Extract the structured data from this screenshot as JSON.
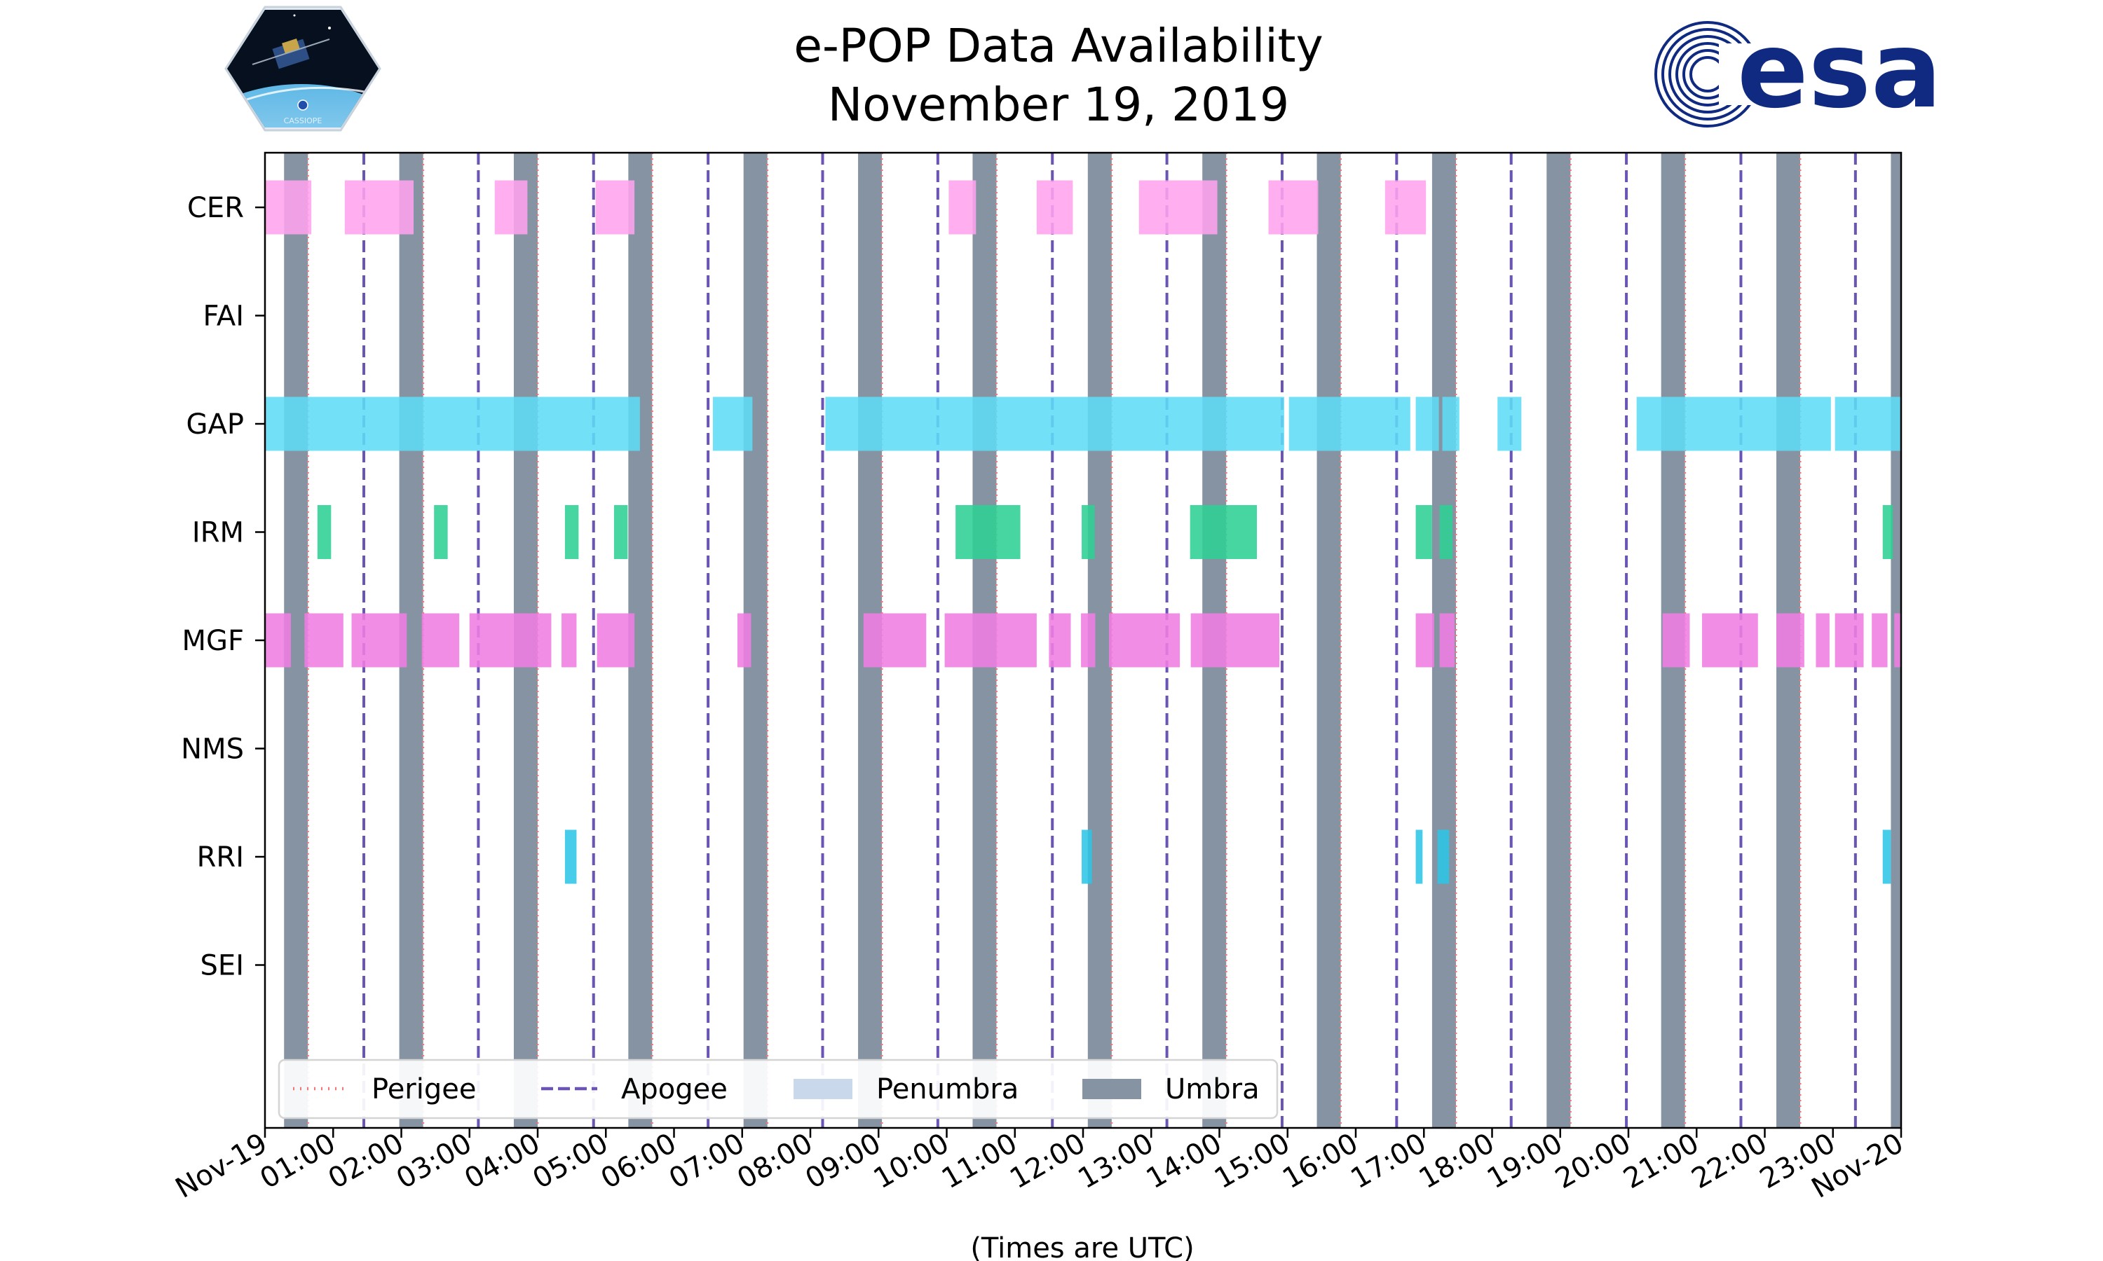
{
  "logos": {
    "cassiope_text": "CASSIOPE",
    "esa_text": "esa"
  },
  "colors": {
    "CER": "#ffa3ee",
    "GAP": "#5fdcf6",
    "IRM": "#2ed095",
    "MGF": "#f07de2",
    "RRI": "#2ec5e6",
    "umbra": "#8593a3",
    "penumbra": "#c9d8ea",
    "perigee": "#f07878",
    "apogee": "#6a55b5",
    "esa_blue": "#0f2a80"
  },
  "chart_data": {
    "type": "timeline",
    "title": [
      "e-POP Data Availability",
      "November 19, 2019"
    ],
    "xlabel": "(Times are UTC)",
    "x_unit": "hours since 2019-11-19 00:00 UTC",
    "xlim": [
      0,
      24
    ],
    "x_ticks": [
      0,
      1,
      2,
      3,
      4,
      5,
      6,
      7,
      8,
      9,
      10,
      11,
      12,
      13,
      14,
      15,
      16,
      17,
      18,
      19,
      20,
      21,
      22,
      23,
      24
    ],
    "x_tick_labels": [
      "Nov-19",
      "01:00",
      "02:00",
      "03:00",
      "04:00",
      "05:00",
      "06:00",
      "07:00",
      "08:00",
      "09:00",
      "10:00",
      "11:00",
      "12:00",
      "13:00",
      "14:00",
      "15:00",
      "16:00",
      "17:00",
      "18:00",
      "19:00",
      "20:00",
      "21:00",
      "22:00",
      "23:00",
      "Nov-20"
    ],
    "categories": [
      "CER",
      "FAI",
      "GAP",
      "IRM",
      "MGF",
      "NMS",
      "RRI",
      "SEI"
    ],
    "legend": {
      "location": "lower-left",
      "entries": [
        {
          "label": "Perigee",
          "style": "dotted-line"
        },
        {
          "label": "Apogee",
          "style": "dashed-line"
        },
        {
          "label": "Penumbra",
          "style": "patch"
        },
        {
          "label": "Umbra",
          "style": "patch"
        }
      ]
    },
    "umbra": [
      [
        0.28,
        0.63
      ],
      [
        1.97,
        2.32
      ],
      [
        3.65,
        4.0
      ],
      [
        5.33,
        5.68
      ],
      [
        7.02,
        7.37
      ],
      [
        8.7,
        9.05
      ],
      [
        10.38,
        10.73
      ],
      [
        12.07,
        12.42
      ],
      [
        13.75,
        14.1
      ],
      [
        15.43,
        15.78
      ],
      [
        17.12,
        17.47
      ],
      [
        18.8,
        19.15
      ],
      [
        20.48,
        20.83
      ],
      [
        22.17,
        22.52
      ],
      [
        23.85,
        24.0
      ]
    ],
    "perigee": [
      0.63,
      2.32,
      4.0,
      5.68,
      7.37,
      9.05,
      10.73,
      12.42,
      14.1,
      15.78,
      17.47,
      19.15,
      20.83,
      22.52
    ],
    "apogee": [
      1.45,
      3.13,
      4.82,
      6.5,
      8.18,
      9.87,
      11.55,
      13.23,
      14.92,
      16.6,
      18.28,
      19.97,
      21.65,
      23.33
    ],
    "series": [
      {
        "name": "CER",
        "intervals": [
          [
            0.0,
            0.68
          ],
          [
            1.17,
            2.18
          ],
          [
            3.37,
            3.85
          ],
          [
            4.85,
            5.42
          ],
          [
            10.03,
            10.43
          ],
          [
            11.32,
            11.85
          ],
          [
            12.82,
            13.97
          ],
          [
            14.72,
            15.45
          ],
          [
            16.43,
            17.03
          ]
        ]
      },
      {
        "name": "FAI",
        "intervals": []
      },
      {
        "name": "GAP",
        "intervals": [
          [
            0.0,
            5.5
          ],
          [
            6.57,
            7.15
          ],
          [
            8.22,
            14.95
          ],
          [
            15.02,
            16.8
          ],
          [
            16.88,
            17.22
          ],
          [
            17.27,
            17.52
          ],
          [
            18.08,
            18.43
          ],
          [
            20.12,
            22.97
          ],
          [
            23.03,
            24.0
          ]
        ]
      },
      {
        "name": "IRM",
        "intervals": [
          [
            0.77,
            0.97
          ],
          [
            2.48,
            2.68
          ],
          [
            4.4,
            4.6
          ],
          [
            5.12,
            5.32
          ],
          [
            10.13,
            11.08
          ],
          [
            11.98,
            12.17
          ],
          [
            13.57,
            14.55
          ],
          [
            16.88,
            17.12
          ],
          [
            17.23,
            17.42
          ],
          [
            23.73,
            23.88
          ]
        ]
      },
      {
        "name": "MGF",
        "intervals": [
          [
            0.0,
            0.38
          ],
          [
            0.58,
            1.15
          ],
          [
            1.27,
            2.08
          ],
          [
            2.3,
            2.85
          ],
          [
            3.0,
            4.2
          ],
          [
            4.35,
            4.57
          ],
          [
            4.87,
            5.42
          ],
          [
            6.93,
            7.13
          ],
          [
            8.78,
            9.7
          ],
          [
            9.97,
            11.32
          ],
          [
            11.5,
            11.82
          ],
          [
            11.97,
            12.18
          ],
          [
            12.38,
            13.42
          ],
          [
            13.58,
            14.88
          ],
          [
            16.88,
            17.15
          ],
          [
            17.23,
            17.45
          ],
          [
            20.5,
            20.9
          ],
          [
            21.08,
            21.9
          ],
          [
            22.17,
            22.58
          ],
          [
            22.75,
            22.95
          ],
          [
            23.03,
            23.45
          ],
          [
            23.57,
            23.8
          ],
          [
            23.9,
            24.0
          ]
        ]
      },
      {
        "name": "NMS",
        "intervals": []
      },
      {
        "name": "RRI",
        "intervals": [
          [
            4.4,
            4.57
          ],
          [
            11.98,
            12.13
          ],
          [
            16.88,
            16.98
          ],
          [
            17.2,
            17.37
          ],
          [
            23.73,
            23.85
          ]
        ]
      },
      {
        "name": "SEI",
        "intervals": []
      }
    ]
  }
}
